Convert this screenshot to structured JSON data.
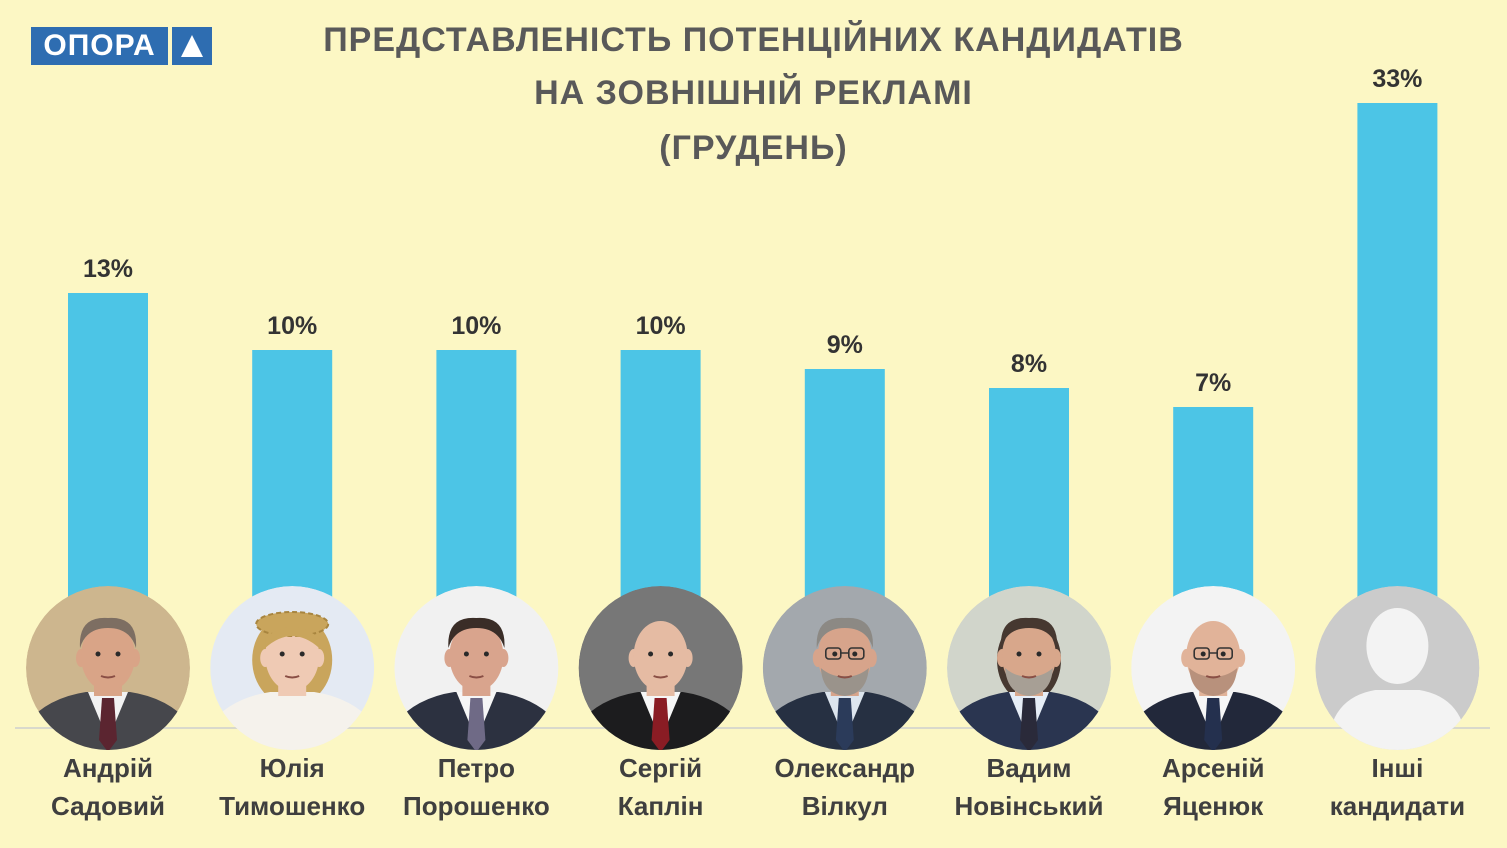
{
  "logo": {
    "text": "ОПОРА",
    "icon": "triangle-up-icon"
  },
  "colors": {
    "background": "#fcf7c4",
    "bar": "#4cc5e6",
    "title": "#595959",
    "text": "#3f3f3f",
    "logo": "#2e6db1",
    "baseline": "#d9d9cc",
    "placeholder_bg": "#cbcbcb",
    "placeholder_figure": "#f3f3f3"
  },
  "chart_data": {
    "type": "bar",
    "title_lines": [
      "ПРЕДСТАВЛЕНІСТЬ ПОТЕНЦІЙНИХ КАНДИДАТІВ",
      "НА ЗОВНІШНІЙ РЕКЛАМІ",
      "(ГРУДЕНЬ)"
    ],
    "categories": [
      "Андрій Садовий",
      "Юлія Тимошенко",
      "Петро Порошенко",
      "Сергій Каплін",
      "Олександр Вілкул",
      "Вадим Новінський",
      "Арсеній Яценюк",
      "Інші кандидати"
    ],
    "values": [
      13,
      10,
      10,
      10,
      9,
      8,
      7,
      33
    ],
    "data_labels": [
      "13%",
      "10%",
      "10%",
      "10%",
      "9%",
      "8%",
      "7%",
      "33%"
    ],
    "grid": false,
    "category_images": [
      "portrait-photo",
      "portrait-photo",
      "portrait-photo",
      "portrait-photo",
      "portrait-photo",
      "portrait-photo",
      "portrait-photo",
      "person-placeholder-icon"
    ]
  }
}
